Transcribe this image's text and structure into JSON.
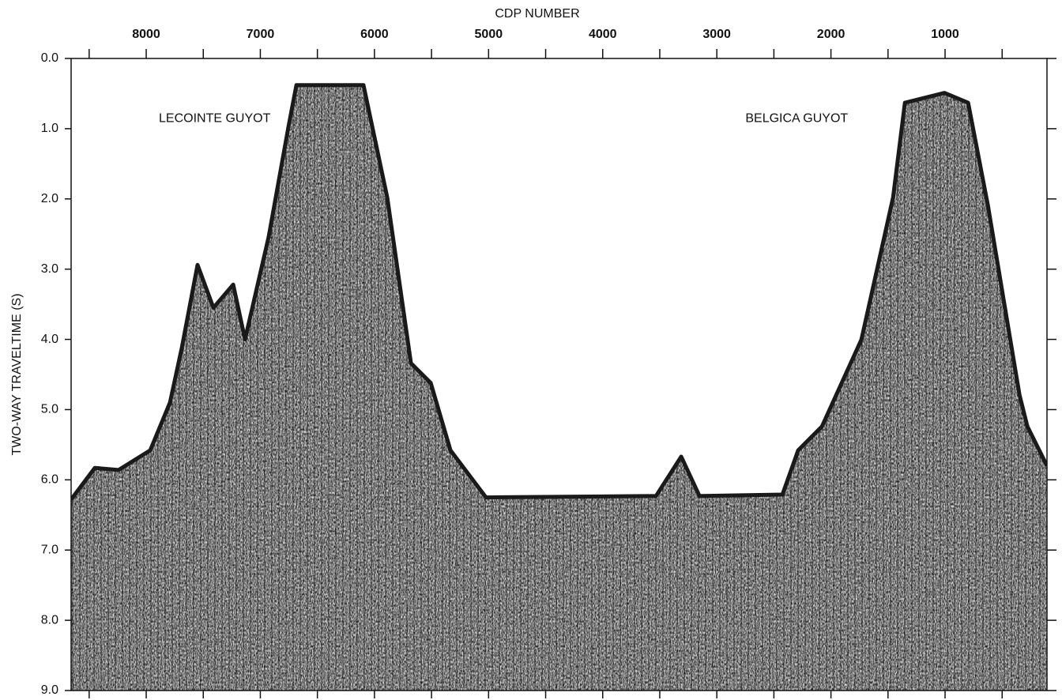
{
  "chart_data": {
    "type": "seismic-profile",
    "title": "CDP NUMBER",
    "y_label": "TWO-WAY TRAVELTIME (S)",
    "annotations": [
      {
        "text": "LECOINTE GUYOT",
        "x": 7400,
        "y": 0.97
      },
      {
        "text": "BELGICA GUYOT",
        "x": 2300,
        "y": 0.97
      }
    ],
    "x": [
      8658,
      8450,
      8242,
      7965,
      7792,
      7688,
      7550,
      7411,
      7238,
      7134,
      6927,
      6753,
      6684,
      6096,
      5888,
      5680,
      5507,
      5334,
      5022,
      3533,
      3312,
      3152,
      2425,
      2287,
      2079,
      1733,
      1456,
      1352,
      1006,
      798,
      625,
      348,
      279,
      107
    ],
    "values": [
      6.28,
      5.83,
      5.86,
      5.58,
      4.9,
      4.12,
      2.94,
      3.55,
      3.22,
      4.0,
      2.54,
      0.97,
      0.38,
      0.38,
      1.98,
      4.34,
      4.62,
      5.58,
      6.25,
      6.23,
      5.67,
      6.23,
      6.21,
      5.58,
      5.24,
      4.0,
      1.98,
      0.63,
      0.49,
      0.63,
      2.09,
      4.79,
      5.24,
      5.8
    ],
    "color": "#1a1a1a",
    "xlim": [
      8658,
      107
    ],
    "xticks": [
      8000,
      7000,
      6000,
      5000,
      4000,
      3000,
      2000,
      1000
    ],
    "xminorticks": [
      8500,
      7500,
      6500,
      5500,
      4500,
      3500,
      2500,
      1500,
      500
    ],
    "ylim": [
      0,
      9
    ],
    "yticks": [
      {
        "value": 0,
        "label": "0.0"
      },
      {
        "value": 1,
        "label": "1.0"
      },
      {
        "value": 2,
        "label": "2.0"
      },
      {
        "value": 3,
        "label": "3.0"
      },
      {
        "value": 4,
        "label": "4.0"
      },
      {
        "value": 5,
        "label": "5.0"
      },
      {
        "value": 6,
        "label": "6.0"
      },
      {
        "value": 7,
        "label": "7.0"
      },
      {
        "value": 8,
        "label": "8.0"
      },
      {
        "value": 9,
        "label": "9.0"
      }
    ],
    "y_inverted": true
  }
}
